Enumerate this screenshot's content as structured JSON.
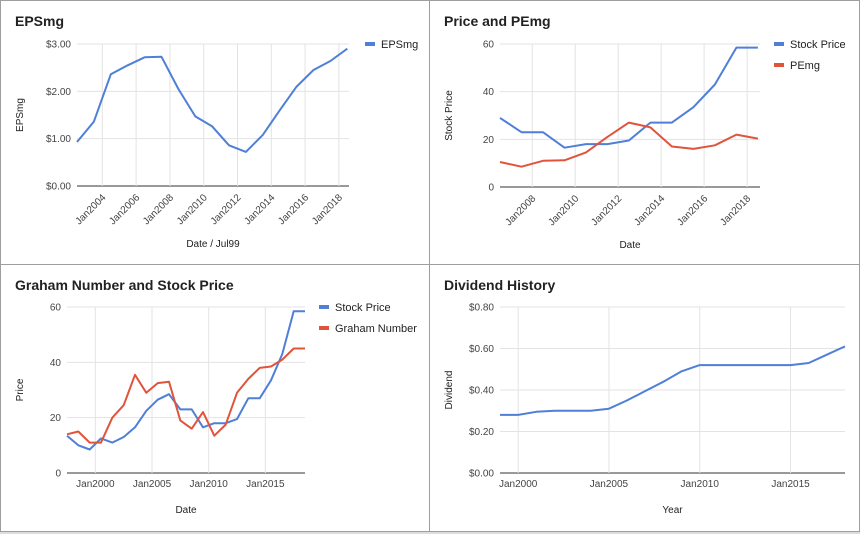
{
  "chart_data": [
    {
      "id": "eps",
      "type": "line",
      "title": "EPSmg",
      "xlabel": "Date / Jul99",
      "ylabel": "EPSmg",
      "xlim": [
        2002.5,
        2018.6
      ],
      "ylim": [
        0,
        3
      ],
      "y_ticks": [
        0,
        1,
        2,
        3
      ],
      "y_tick_labels": [
        "$0.00",
        "$1.00",
        "$2.00",
        "$3.00"
      ],
      "x_ticks": [
        2004,
        2006,
        2008,
        2010,
        2012,
        2014,
        2016,
        2018
      ],
      "x_tick_labels": [
        "Jan2004",
        "Jan2006",
        "Jan2008",
        "Jan2010",
        "Jan2012",
        "Jan2014",
        "Jan2016",
        "Jan2018"
      ],
      "legend_position": "top-right",
      "series": [
        {
          "name": "EPSmg",
          "color": "#4f7fd6",
          "x": [
            2002.5,
            2003.5,
            2004.5,
            2005.5,
            2006.5,
            2007.5,
            2008.5,
            2009.5,
            2010.5,
            2011.5,
            2012.5,
            2013.5,
            2014.5,
            2015.5,
            2016.5,
            2017.5,
            2018.5
          ],
          "values": [
            0.93,
            1.36,
            2.36,
            2.55,
            2.72,
            2.73,
            2.05,
            1.47,
            1.26,
            0.86,
            0.72,
            1.08,
            1.6,
            2.1,
            2.45,
            2.64,
            2.9
          ]
        }
      ]
    },
    {
      "id": "price",
      "type": "line",
      "title": "Price and PEmg",
      "xlabel": "Date",
      "ylabel": "Stock Price",
      "xlim": [
        2006.5,
        2018.6
      ],
      "ylim": [
        0,
        60
      ],
      "y_ticks": [
        0,
        20,
        40,
        60
      ],
      "y_tick_labels": [
        "0",
        "20",
        "40",
        "60"
      ],
      "x_ticks": [
        2008,
        2010,
        2012,
        2014,
        2016,
        2018
      ],
      "x_tick_labels": [
        "Jan2008",
        "Jan2010",
        "Jan2012",
        "Jan2014",
        "Jan2016",
        "Jan2018"
      ],
      "legend_position": "top-right",
      "series": [
        {
          "name": "Stock Price",
          "color": "#4f7fd6",
          "x": [
            2006.5,
            2007.5,
            2008.5,
            2009.5,
            2010.5,
            2011.5,
            2012.5,
            2013.5,
            2014.5,
            2015.5,
            2016.5,
            2017.5,
            2018.5
          ],
          "values": [
            29,
            23,
            23,
            16.5,
            18,
            18,
            19.5,
            27,
            27,
            33.5,
            43,
            58.5,
            58.5
          ]
        },
        {
          "name": "PEmg",
          "color": "#e0543c",
          "x": [
            2006.5,
            2007.5,
            2008.5,
            2009.5,
            2010.5,
            2011.5,
            2012.5,
            2013.5,
            2014.5,
            2015.5,
            2016.5,
            2017.5,
            2018.5
          ],
          "values": [
            10.5,
            8.5,
            11,
            11.2,
            14.5,
            21,
            27,
            25,
            17,
            16,
            17.5,
            22,
            20.3
          ]
        }
      ]
    },
    {
      "id": "graham",
      "type": "line",
      "title": "Graham Number and Stock Price",
      "xlabel": "Date",
      "ylabel": "Price",
      "xlim": [
        1997.5,
        2018.5
      ],
      "ylim": [
        0,
        60
      ],
      "y_ticks": [
        0,
        20,
        40,
        60
      ],
      "y_tick_labels": [
        "0",
        "20",
        "40",
        "60"
      ],
      "x_ticks": [
        2000,
        2005,
        2010,
        2015
      ],
      "x_tick_labels": [
        "Jan2000",
        "Jan2005",
        "Jan2010",
        "Jan2015"
      ],
      "legend_position": "top-right",
      "series": [
        {
          "name": "Stock Price",
          "color": "#4f7fd6",
          "x": [
            1997.5,
            1998.5,
            1999.5,
            2000.5,
            2001.5,
            2002.5,
            2003.5,
            2004.5,
            2005.5,
            2006.5,
            2007.5,
            2008.5,
            2009.5,
            2010.5,
            2011.5,
            2012.5,
            2013.5,
            2014.5,
            2015.5,
            2016.5,
            2017.5,
            2018.5
          ],
          "values": [
            13.5,
            10,
            8.5,
            12.5,
            11,
            13,
            16.5,
            22.5,
            26.5,
            28.5,
            23,
            23,
            16.5,
            18,
            18,
            19.5,
            27,
            27,
            33.5,
            43,
            58.5,
            58.5
          ]
        },
        {
          "name": "Graham Number",
          "color": "#e0543c",
          "x": [
            1997.5,
            1998.5,
            1999.5,
            2000.5,
            2001.5,
            2002.5,
            2003.5,
            2004.5,
            2005.5,
            2006.5,
            2007.5,
            2008.5,
            2009.5,
            2010.5,
            2011.5,
            2012.5,
            2013.5,
            2014.5,
            2015.5,
            2016.5,
            2017.5,
            2018.5
          ],
          "values": [
            14,
            15,
            11,
            11,
            20,
            24.5,
            35.5,
            29,
            32.5,
            33,
            19,
            16,
            22,
            13.5,
            17.5,
            29,
            34,
            38,
            38.5,
            41,
            45,
            45
          ]
        }
      ]
    },
    {
      "id": "dividend",
      "type": "line",
      "title": "Dividend History",
      "xlabel": "Year",
      "ylabel": "Dividend",
      "xlim": [
        1999,
        2018
      ],
      "ylim": [
        0,
        0.8
      ],
      "y_ticks": [
        0,
        0.2,
        0.4,
        0.6,
        0.8
      ],
      "y_tick_labels": [
        "$0.00",
        "$0.20",
        "$0.40",
        "$0.60",
        "$0.80"
      ],
      "x_ticks": [
        2000,
        2005,
        2010,
        2015
      ],
      "x_tick_labels": [
        "Jan2000",
        "Jan2005",
        "Jan2010",
        "Jan2015"
      ],
      "series": [
        {
          "name": "",
          "color": "#4f7fd6",
          "x": [
            1999,
            2000,
            2001,
            2002,
            2003,
            2004,
            2005,
            2006,
            2007,
            2008,
            2009,
            2010,
            2011,
            2012,
            2013,
            2014,
            2015,
            2016,
            2017,
            2018
          ],
          "values": [
            0.28,
            0.28,
            0.295,
            0.3,
            0.3,
            0.3,
            0.31,
            0.35,
            0.395,
            0.44,
            0.49,
            0.52,
            0.52,
            0.52,
            0.52,
            0.52,
            0.52,
            0.53,
            0.57,
            0.61
          ]
        }
      ]
    }
  ]
}
